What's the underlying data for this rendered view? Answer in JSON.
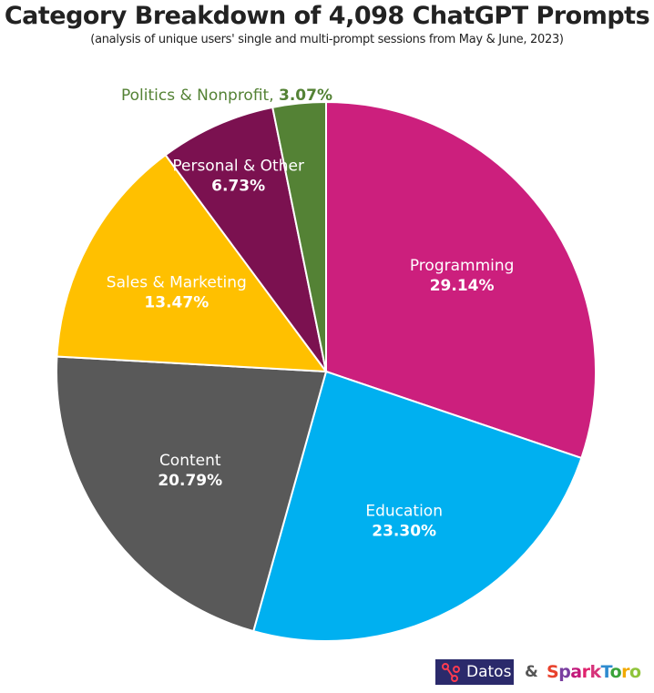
{
  "title": "Category Breakdown of 4,098 ChatGPT Prompts",
  "subtitle": "(analysis of unique users' single and multi-prompt sessions from May & June, 2023)",
  "chart_data": {
    "type": "pie",
    "title": "Category Breakdown of 4,098 ChatGPT Prompts",
    "subtitle": "(analysis of unique users' single and multi-prompt sessions from May & June, 2023)",
    "start": "top",
    "direction": "clockwise",
    "slices": [
      {
        "label": "Programming",
        "value": 29.14,
        "value_label": "29.14%",
        "color": "#CC1F7D"
      },
      {
        "label": "Education",
        "value": 23.3,
        "value_label": "23.30%",
        "color": "#00B0F0"
      },
      {
        "label": "Content",
        "value": 20.79,
        "value_label": "20.79%",
        "color": "#595959"
      },
      {
        "label": "Sales & Marketing",
        "value": 13.47,
        "value_label": "13.47%",
        "color": "#FFC000"
      },
      {
        "label": "Personal & Other",
        "value": 6.73,
        "value_label": "6.73%",
        "color": "#7B1150"
      },
      {
        "label": "Politics & Nonprofit,",
        "value": 3.07,
        "value_label": "3.07%",
        "color": "#548235"
      }
    ]
  },
  "logos": {
    "datos": "Datos",
    "amp": "&",
    "sparktoro": "SparkToro"
  }
}
